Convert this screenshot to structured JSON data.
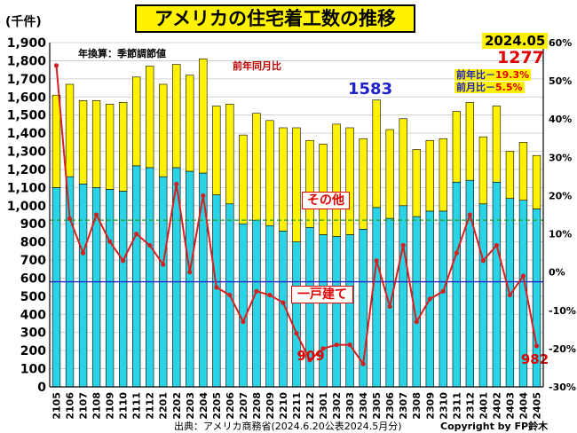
{
  "title": "アメリカの住宅着工数の推移",
  "unit_label": "(千件)",
  "note": "年換算：季節調節値",
  "latest": {
    "date": "2024.05",
    "value": "1277",
    "yoy_label": "前年比－",
    "yoy_value": "19.3%",
    "mom_label": "前月比－",
    "mom_value": "5.5%"
  },
  "callouts": {
    "peak": "1583",
    "single_family_min": "909",
    "single_family_last": "982",
    "mom_series_label": "前年同月比",
    "other_label": "その他",
    "single_family_label": "一戸建て"
  },
  "source": "出典：アメリカ商務省(2024.6.20公表2024.5月分)",
  "copyright": "Copyright by FP鈴木",
  "colors": {
    "single_family": "#2ad4e6",
    "other": "#fff200",
    "yoy_line": "#d42020",
    "ref_line_total": "#1f22c8",
    "ref_line_single": "#2e9b2e"
  },
  "chart_data": {
    "type": "bar",
    "stacked": true,
    "categories": [
      "2105",
      "2106",
      "2107",
      "2108",
      "2109",
      "2110",
      "2111",
      "2112",
      "2201",
      "2202",
      "2203",
      "2204",
      "2205",
      "2206",
      "2207",
      "2208",
      "2209",
      "2210",
      "2211",
      "2212",
      "2301",
      "2302",
      "2303",
      "2304",
      "2305",
      "2306",
      "2307",
      "2308",
      "2309",
      "2310",
      "2311",
      "2312",
      "2401",
      "2402",
      "2403",
      "2404",
      "2405"
    ],
    "series": [
      {
        "name": "一戸建て",
        "axis": "left",
        "values": [
          1100,
          1160,
          1120,
          1100,
          1090,
          1080,
          1220,
          1210,
          1160,
          1210,
          1190,
          1180,
          1060,
          1010,
          900,
          920,
          890,
          860,
          800,
          880,
          840,
          830,
          840,
          870,
          990,
          930,
          1000,
          940,
          970,
          970,
          1130,
          1140,
          1010,
          1130,
          1040,
          1030,
          982
        ]
      },
      {
        "name": "その他",
        "axis": "left",
        "values": [
          510,
          510,
          460,
          480,
          470,
          490,
          490,
          560,
          510,
          570,
          530,
          630,
          490,
          550,
          490,
          590,
          580,
          570,
          630,
          480,
          500,
          620,
          590,
          500,
          593,
          490,
          480,
          370,
          390,
          400,
          390,
          430,
          370,
          420,
          260,
          320,
          295
        ]
      },
      {
        "name": "前年同月比",
        "type": "line",
        "axis": "right",
        "unit": "%",
        "values": [
          54,
          14,
          5,
          15,
          8,
          3,
          10,
          7,
          2,
          23,
          0,
          20,
          -4,
          -6,
          -13,
          -5,
          -6,
          -8,
          -16,
          -23,
          -20,
          -19,
          -19,
          -24,
          3,
          -9,
          7,
          -13,
          -7,
          -5,
          5,
          15,
          3,
          7,
          -6,
          -1,
          -19.3
        ]
      }
    ],
    "title": "アメリカの住宅着工数の推移",
    "ylabel": "(千件)",
    "ylim": [
      0,
      1900
    ],
    "ytick_step": 100,
    "y2lim": [
      -30,
      60
    ],
    "y2tick_step": 10,
    "reference_lines": [
      {
        "name": "total-reference",
        "value": 580,
        "axis": "left",
        "style": "solid"
      },
      {
        "name": "single-family-reference",
        "value": 920,
        "axis": "left",
        "style": "dashed"
      }
    ]
  }
}
